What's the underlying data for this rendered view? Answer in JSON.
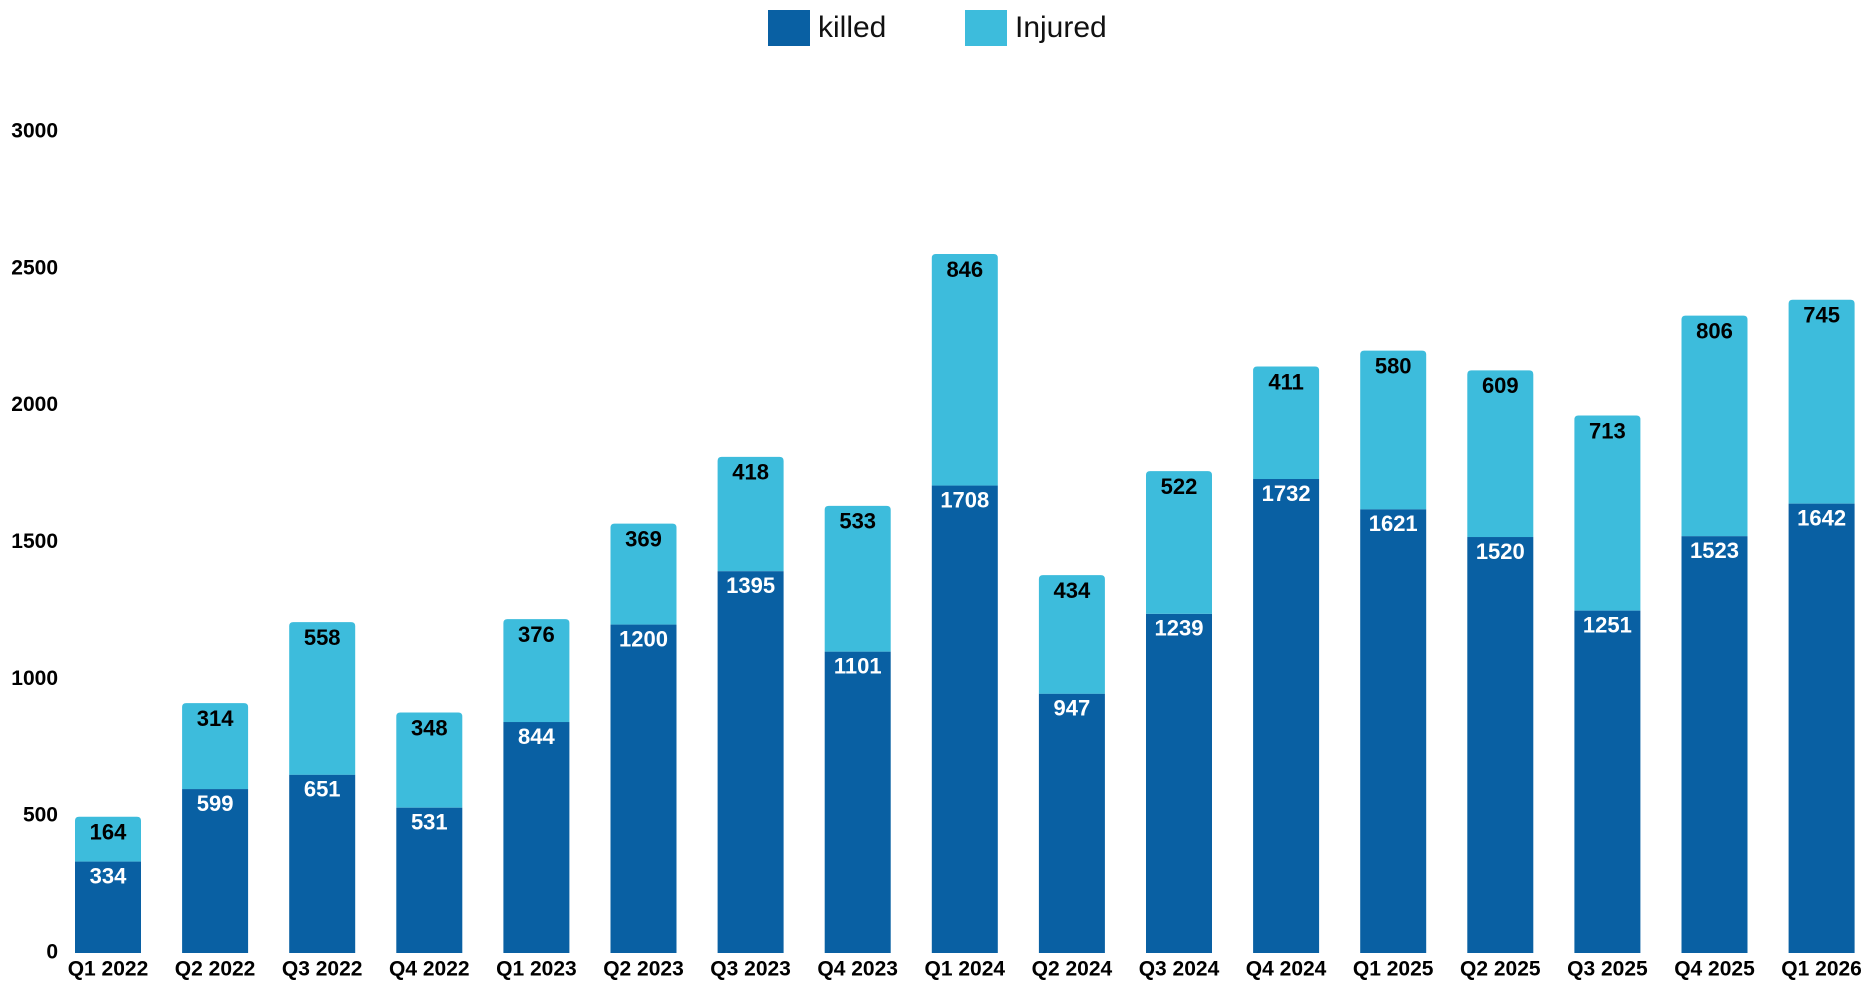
{
  "chart_data": {
    "type": "bar",
    "stacked": true,
    "categories": [
      "Q1 2022",
      "Q2 2022",
      "Q3 2022",
      "Q4 2022",
      "Q1 2023",
      "Q2 2023",
      "Q3 2023",
      "Q4 2023",
      "Q1 2024",
      "Q2 2024",
      "Q3 2024",
      "Q4 2024",
      "Q1 2025",
      "Q2 2025",
      "Q3 2025",
      "Q4 2025",
      "Q1 2026"
    ],
    "series": [
      {
        "name": "killed",
        "color": "#0960a3",
        "values": [
          334,
          599,
          651,
          531,
          844,
          1200,
          1395,
          1101,
          1708,
          947,
          1239,
          1732,
          1621,
          1520,
          1251,
          1523,
          1642
        ]
      },
      {
        "name": "Injured",
        "color": "#3dbcdc",
        "values": [
          164,
          314,
          558,
          348,
          376,
          369,
          418,
          533,
          846,
          434,
          522,
          411,
          580,
          609,
          713,
          806,
          745
        ]
      }
    ],
    "ylim": [
      0,
      3000
    ],
    "yticks": [
      0,
      500,
      1000,
      1500,
      2000,
      2500,
      3000
    ],
    "grid": false,
    "legend_position": "top-center"
  }
}
